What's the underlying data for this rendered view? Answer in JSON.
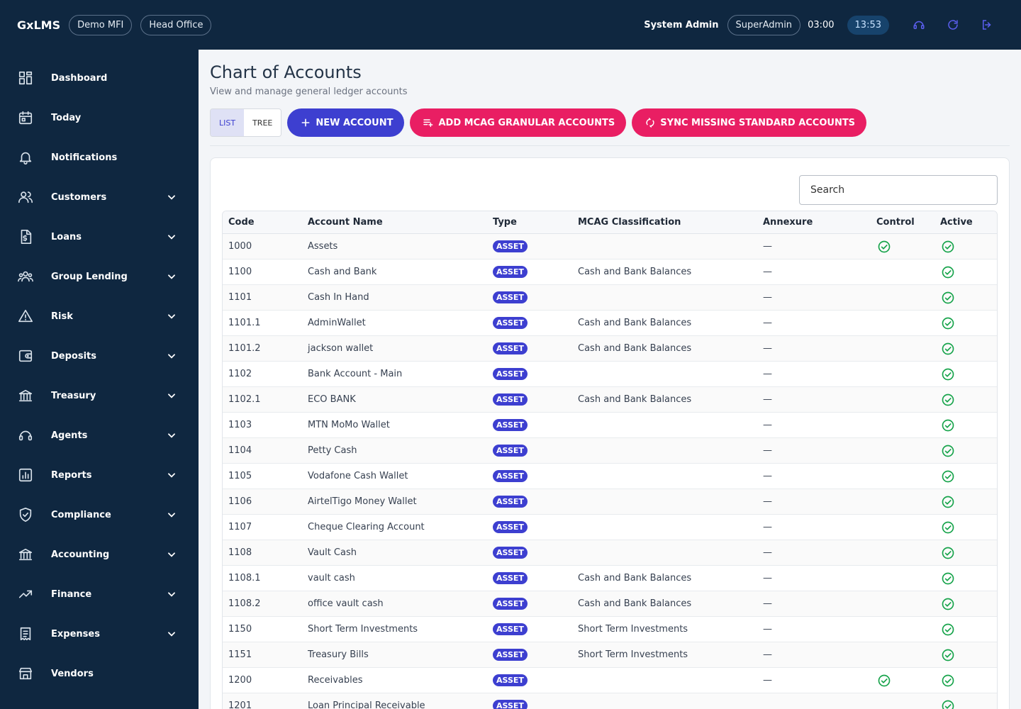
{
  "header": {
    "brand": "GxLMS",
    "org": "Demo MFI",
    "branch": "Head Office",
    "user": "System Admin",
    "role": "SuperAdmin",
    "session_timer": "03:00",
    "clock": "13:53",
    "icons": [
      "headset-icon",
      "refresh-icon",
      "logout-icon"
    ]
  },
  "sidebar": {
    "items": [
      {
        "label": "Dashboard",
        "icon": "dashboard-icon",
        "expandable": false
      },
      {
        "label": "Today",
        "icon": "calendar-icon",
        "expandable": false
      },
      {
        "label": "Notifications",
        "icon": "bell-icon",
        "expandable": false
      },
      {
        "label": "Customers",
        "icon": "users-icon",
        "expandable": true
      },
      {
        "label": "Loans",
        "icon": "document-dollar-icon",
        "expandable": true
      },
      {
        "label": "Group Lending",
        "icon": "group-icon",
        "expandable": true
      },
      {
        "label": "Risk",
        "icon": "warning-icon",
        "expandable": true
      },
      {
        "label": "Deposits",
        "icon": "wallet-icon",
        "expandable": true
      },
      {
        "label": "Treasury",
        "icon": "bank-icon",
        "expandable": true
      },
      {
        "label": "Agents",
        "icon": "headset-icon",
        "expandable": true
      },
      {
        "label": "Reports",
        "icon": "bar-chart-icon",
        "expandable": true
      },
      {
        "label": "Compliance",
        "icon": "shield-check-icon",
        "expandable": true
      },
      {
        "label": "Accounting",
        "icon": "bank-icon",
        "expandable": true
      },
      {
        "label": "Finance",
        "icon": "trending-up-icon",
        "expandable": true
      },
      {
        "label": "Expenses",
        "icon": "receipt-icon",
        "expandable": true
      },
      {
        "label": "Vendors",
        "icon": "store-icon",
        "expandable": false
      }
    ]
  },
  "page": {
    "title": "Chart of Accounts",
    "subtitle": "View and manage general ledger accounts",
    "view_toggle": {
      "list": "LIST",
      "tree": "TREE",
      "selected": "LIST"
    },
    "buttons": {
      "new_account": "NEW ACCOUNT",
      "add_mcag": "ADD MCAG GRANULAR ACCOUNTS",
      "sync_missing": "SYNC MISSING STANDARD ACCOUNTS"
    },
    "search_placeholder": "Search"
  },
  "table": {
    "columns": [
      "Code",
      "Account Name",
      "Type",
      "MCAG Classification",
      "Annexure",
      "Control",
      "Active"
    ],
    "rows": [
      {
        "code": "1000",
        "name": "Assets",
        "type": "ASSET",
        "mcag": "",
        "annexure": "—",
        "control": true,
        "active": true
      },
      {
        "code": "1100",
        "name": "Cash and Bank",
        "type": "ASSET",
        "mcag": "Cash and Bank Balances",
        "annexure": "—",
        "control": false,
        "active": true
      },
      {
        "code": "1101",
        "name": "Cash In Hand",
        "type": "ASSET",
        "mcag": "",
        "annexure": "—",
        "control": false,
        "active": true
      },
      {
        "code": "1101.1",
        "name": "AdminWallet",
        "type": "ASSET",
        "mcag": "Cash and Bank Balances",
        "annexure": "—",
        "control": false,
        "active": true
      },
      {
        "code": "1101.2",
        "name": "jackson wallet",
        "type": "ASSET",
        "mcag": "Cash and Bank Balances",
        "annexure": "—",
        "control": false,
        "active": true
      },
      {
        "code": "1102",
        "name": "Bank Account - Main",
        "type": "ASSET",
        "mcag": "",
        "annexure": "—",
        "control": false,
        "active": true
      },
      {
        "code": "1102.1",
        "name": "ECO BANK",
        "type": "ASSET",
        "mcag": "Cash and Bank Balances",
        "annexure": "—",
        "control": false,
        "active": true
      },
      {
        "code": "1103",
        "name": "MTN MoMo Wallet",
        "type": "ASSET",
        "mcag": "",
        "annexure": "—",
        "control": false,
        "active": true
      },
      {
        "code": "1104",
        "name": "Petty Cash",
        "type": "ASSET",
        "mcag": "",
        "annexure": "—",
        "control": false,
        "active": true
      },
      {
        "code": "1105",
        "name": "Vodafone Cash Wallet",
        "type": "ASSET",
        "mcag": "",
        "annexure": "—",
        "control": false,
        "active": true
      },
      {
        "code": "1106",
        "name": "AirtelTigo Money Wallet",
        "type": "ASSET",
        "mcag": "",
        "annexure": "—",
        "control": false,
        "active": true
      },
      {
        "code": "1107",
        "name": "Cheque Clearing Account",
        "type": "ASSET",
        "mcag": "",
        "annexure": "—",
        "control": false,
        "active": true
      },
      {
        "code": "1108",
        "name": "Vault Cash",
        "type": "ASSET",
        "mcag": "",
        "annexure": "—",
        "control": false,
        "active": true
      },
      {
        "code": "1108.1",
        "name": "vault cash",
        "type": "ASSET",
        "mcag": "Cash and Bank Balances",
        "annexure": "—",
        "control": false,
        "active": true
      },
      {
        "code": "1108.2",
        "name": "office vault cash",
        "type": "ASSET",
        "mcag": "Cash and Bank Balances",
        "annexure": "—",
        "control": false,
        "active": true
      },
      {
        "code": "1150",
        "name": "Short Term Investments",
        "type": "ASSET",
        "mcag": "Short Term Investments",
        "annexure": "—",
        "control": false,
        "active": true
      },
      {
        "code": "1151",
        "name": "Treasury Bills",
        "type": "ASSET",
        "mcag": "Short Term Investments",
        "annexure": "—",
        "control": false,
        "active": true
      },
      {
        "code": "1200",
        "name": "Receivables",
        "type": "ASSET",
        "mcag": "",
        "annexure": "—",
        "control": true,
        "active": true
      },
      {
        "code": "1201",
        "name": "Loan Principal Receivable",
        "type": "ASSET",
        "mcag": "",
        "annexure": "",
        "control": false,
        "active": true
      }
    ]
  },
  "colors": {
    "navy": "#0f2740",
    "primary": "#3d3fd0",
    "accent": "#e91e63",
    "success": "#16a34a"
  }
}
